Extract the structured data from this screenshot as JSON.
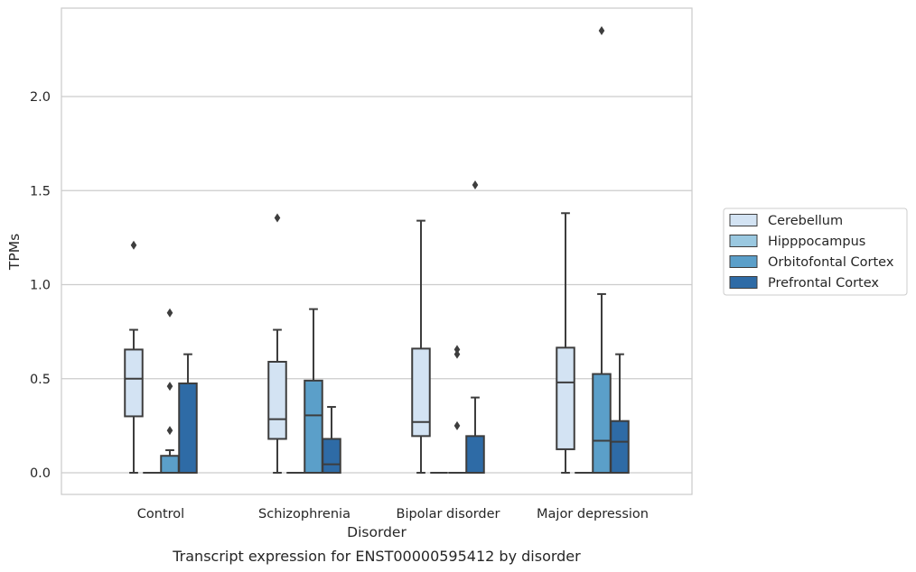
{
  "chart_data": {
    "type": "box",
    "caption": "Transcript expression for ENST00000595412 by disorder",
    "xlabel": "Disorder",
    "ylabel": "TPMs",
    "ylim": [
      -0.11,
      2.48
    ],
    "yticks": [
      0.0,
      0.5,
      1.0,
      1.5,
      2.0
    ],
    "ytick_labels": [
      "0.0",
      "0.5",
      "1.0",
      "1.5",
      "2.0"
    ],
    "grid": "horizontal",
    "legend_position": "right",
    "categories": [
      "Control",
      "Schizophrenia",
      "Bipolar disorder",
      "Major depression"
    ],
    "series": [
      {
        "name": "Cerebellum",
        "color": "#d3e3f3",
        "boxes": [
          {
            "whislo": 0.0,
            "q1": 0.3,
            "med": 0.5,
            "q3": 0.655,
            "whishi": 0.76,
            "fliers": [
              1.21
            ]
          },
          {
            "whislo": 0.0,
            "q1": 0.18,
            "med": 0.285,
            "q3": 0.59,
            "whishi": 0.76,
            "fliers": [
              1.355
            ]
          },
          {
            "whislo": 0.0,
            "q1": 0.195,
            "med": 0.27,
            "q3": 0.66,
            "whishi": 1.34,
            "fliers": []
          },
          {
            "whislo": 0.0,
            "q1": 0.125,
            "med": 0.48,
            "q3": 0.665,
            "whishi": 1.38,
            "fliers": []
          }
        ]
      },
      {
        "name": "Hipppocampus",
        "color": "#9ac8e0",
        "boxes": [
          {
            "whislo": 0.0,
            "q1": 0.0,
            "med": 0.0,
            "q3": 0.0,
            "whishi": 0.0,
            "fliers": []
          },
          {
            "whislo": 0.0,
            "q1": 0.0,
            "med": 0.0,
            "q3": 0.0,
            "whishi": 0.0,
            "fliers": []
          },
          {
            "whislo": 0.0,
            "q1": 0.0,
            "med": 0.0,
            "q3": 0.0,
            "whishi": 0.0,
            "fliers": []
          },
          {
            "whislo": 0.0,
            "q1": 0.0,
            "med": 0.0,
            "q3": 0.0,
            "whishi": 0.0,
            "fliers": []
          }
        ]
      },
      {
        "name": "Orbitofontal Cortex",
        "color": "#5b9fc9",
        "boxes": [
          {
            "whislo": 0.0,
            "q1": 0.0,
            "med": 0.0,
            "q3": 0.09,
            "whishi": 0.12,
            "fliers": [
              0.225,
              0.46,
              0.85
            ]
          },
          {
            "whislo": 0.0,
            "q1": 0.0,
            "med": 0.305,
            "q3": 0.49,
            "whishi": 0.87,
            "fliers": []
          },
          {
            "whislo": 0.0,
            "q1": 0.0,
            "med": 0.0,
            "q3": 0.0,
            "whishi": 0.0,
            "fliers": [
              0.25,
              0.63,
              0.655
            ]
          },
          {
            "whislo": 0.0,
            "q1": 0.0,
            "med": 0.17,
            "q3": 0.525,
            "whishi": 0.95,
            "fliers": [
              2.35
            ]
          }
        ]
      },
      {
        "name": "Prefrontal Cortex",
        "color": "#2e6ba6",
        "boxes": [
          {
            "whislo": 0.0,
            "q1": 0.0,
            "med": 0.0,
            "q3": 0.475,
            "whishi": 0.63,
            "fliers": []
          },
          {
            "whislo": 0.0,
            "q1": 0.0,
            "med": 0.045,
            "q3": 0.18,
            "whishi": 0.35,
            "fliers": []
          },
          {
            "whislo": 0.0,
            "q1": 0.0,
            "med": 0.0,
            "q3": 0.195,
            "whishi": 0.4,
            "fliers": [
              1.53
            ]
          },
          {
            "whislo": 0.0,
            "q1": 0.0,
            "med": 0.165,
            "q3": 0.275,
            "whishi": 0.63,
            "fliers": []
          }
        ]
      }
    ]
  }
}
